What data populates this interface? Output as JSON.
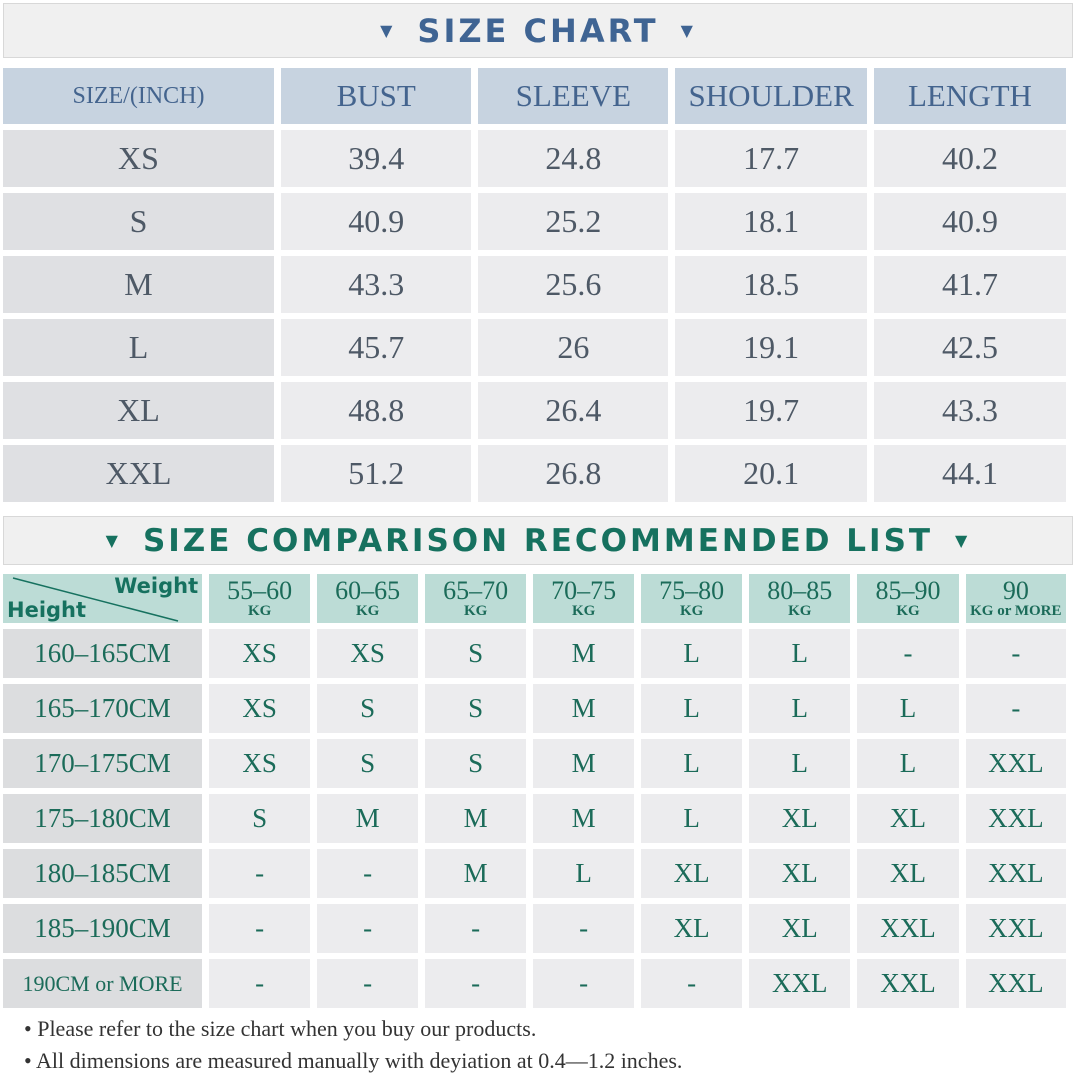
{
  "size_chart": {
    "title": "SIZE CHART",
    "headers": [
      "SIZE/(INCH)",
      "BUST",
      "SLEEVE",
      "SHOULDER",
      "LENGTH"
    ],
    "rows": [
      [
        "XS",
        "39.4",
        "24.8",
        "17.7",
        "40.2"
      ],
      [
        "S",
        "40.9",
        "25.2",
        "18.1",
        "40.9"
      ],
      [
        "M",
        "43.3",
        "25.6",
        "18.5",
        "41.7"
      ],
      [
        "L",
        "45.7",
        "26",
        "19.1",
        "42.5"
      ],
      [
        "XL",
        "48.8",
        "26.4",
        "19.7",
        "43.3"
      ],
      [
        "XXL",
        "51.2",
        "26.8",
        "20.1",
        "44.1"
      ]
    ],
    "color": "#3f6493"
  },
  "recommend": {
    "title": "SIZE COMPARISON RECOMMENDED LIST",
    "corner_weight": "Weight",
    "corner_height": "Height",
    "weights": [
      [
        "55–60",
        "KG"
      ],
      [
        "60–65",
        "KG"
      ],
      [
        "65–70",
        "KG"
      ],
      [
        "70–75",
        "KG"
      ],
      [
        "75–80",
        "KG"
      ],
      [
        "80–85",
        "KG"
      ],
      [
        "85–90",
        "KG"
      ],
      [
        "90",
        "KG or MORE"
      ]
    ],
    "rows": [
      {
        "height": "160–165CM",
        "sizes": [
          "XS",
          "XS",
          "S",
          "M",
          "L",
          "L",
          "-",
          "-"
        ]
      },
      {
        "height": "165–170CM",
        "sizes": [
          "XS",
          "S",
          "S",
          "M",
          "L",
          "L",
          "L",
          "-"
        ]
      },
      {
        "height": "170–175CM",
        "sizes": [
          "XS",
          "S",
          "S",
          "M",
          "L",
          "L",
          "L",
          "XXL"
        ]
      },
      {
        "height": "175–180CM",
        "sizes": [
          "S",
          "M",
          "M",
          "M",
          "L",
          "XL",
          "XL",
          "XXL"
        ]
      },
      {
        "height": "180–185CM",
        "sizes": [
          "-",
          "-",
          "M",
          "L",
          "XL",
          "XL",
          "XL",
          "XXL"
        ]
      },
      {
        "height": "185–190CM",
        "sizes": [
          "-",
          "-",
          "-",
          "-",
          "XL",
          "XL",
          "XXL",
          "XXL"
        ]
      },
      {
        "height": "190CM or MORE",
        "sizes": [
          "-",
          "-",
          "-",
          "-",
          "-",
          "XXL",
          "XXL",
          "XXL"
        ]
      }
    ],
    "color": "#16715f"
  },
  "notes": [
    "• Please refer to the size chart when you buy our products.",
    "• All dimensions are measured manually with deyiation at 0.4––1.2 inches."
  ]
}
